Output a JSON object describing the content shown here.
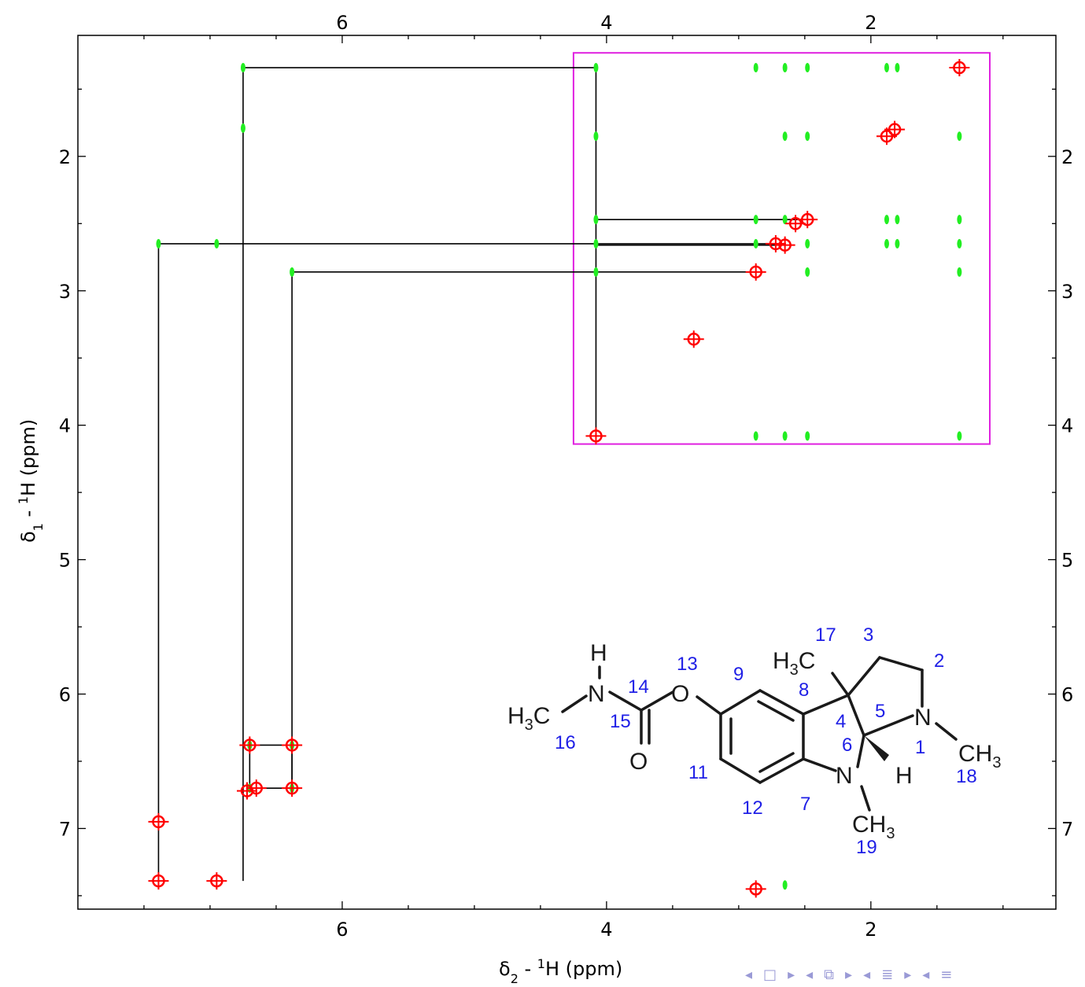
{
  "chart_data": {
    "type": "scatter",
    "x_unit": "ppm",
    "y_unit": "ppm",
    "xlim": [
      8.0,
      0.6
    ],
    "ylim": [
      1.1,
      7.6
    ],
    "x_ticks": [
      "6",
      "4",
      "2"
    ],
    "y_ticks": [
      "2",
      "3",
      "4",
      "5",
      "6",
      "7"
    ],
    "grid": false,
    "colors": {
      "positive": "#ff0000",
      "negative": "#22ee22",
      "assignment": "#000000",
      "zoom_box": "#e020e0"
    },
    "peaks_red": [
      [
        1.33,
        1.34
      ],
      [
        1.88,
        1.85
      ],
      [
        1.82,
        1.8
      ],
      [
        2.48,
        2.47
      ],
      [
        2.57,
        2.5
      ],
      [
        2.65,
        2.66
      ],
      [
        2.72,
        2.65
      ],
      [
        2.87,
        2.86
      ],
      [
        3.34,
        3.36
      ],
      [
        4.08,
        4.08
      ],
      [
        6.38,
        6.38
      ],
      [
        6.72,
        6.72
      ],
      [
        6.65,
        6.7
      ],
      [
        6.38,
        6.7
      ],
      [
        6.7,
        6.38
      ],
      [
        7.39,
        7.39
      ],
      [
        7.39,
        6.95
      ],
      [
        6.95,
        7.39
      ],
      [
        2.87,
        7.45
      ]
    ],
    "peaks_green": [
      [
        6.75,
        1.34
      ],
      [
        4.08,
        1.34
      ],
      [
        2.87,
        1.34
      ],
      [
        2.65,
        1.34
      ],
      [
        2.48,
        1.34
      ],
      [
        1.88,
        1.34
      ],
      [
        1.8,
        1.34
      ],
      [
        6.75,
        1.79
      ],
      [
        4.08,
        1.85
      ],
      [
        2.65,
        1.85
      ],
      [
        2.48,
        1.85
      ],
      [
        1.33,
        1.85
      ],
      [
        4.08,
        2.47
      ],
      [
        2.87,
        2.47
      ],
      [
        2.65,
        2.47
      ],
      [
        1.88,
        2.47
      ],
      [
        1.8,
        2.47
      ],
      [
        1.33,
        2.47
      ],
      [
        7.39,
        2.65
      ],
      [
        6.95,
        2.65
      ],
      [
        4.08,
        2.65
      ],
      [
        2.87,
        2.65
      ],
      [
        2.48,
        2.65
      ],
      [
        1.88,
        2.65
      ],
      [
        1.8,
        2.65
      ],
      [
        1.33,
        2.65
      ],
      [
        6.38,
        2.86
      ],
      [
        4.08,
        2.86
      ],
      [
        2.48,
        2.86
      ],
      [
        1.33,
        2.86
      ],
      [
        2.87,
        4.08
      ],
      [
        2.65,
        4.08
      ],
      [
        2.48,
        4.08
      ],
      [
        1.33,
        4.08
      ],
      [
        6.7,
        6.38
      ],
      [
        6.38,
        6.38
      ],
      [
        6.7,
        6.7
      ],
      [
        6.38,
        6.7
      ],
      [
        2.65,
        7.42
      ]
    ],
    "assignment_lines": [
      [
        [
          6.75,
          7.39
        ],
        [
          6.75,
          1.34
        ],
        [
          4.08,
          1.34
        ],
        [
          4.08,
          4.08
        ]
      ],
      [
        [
          7.39,
          7.39
        ],
        [
          7.39,
          2.65
        ],
        [
          2.72,
          2.65
        ]
      ],
      [
        [
          6.38,
          6.7
        ],
        [
          6.38,
          2.86
        ],
        [
          2.87,
          2.86
        ]
      ],
      [
        [
          4.08,
          2.47
        ],
        [
          2.48,
          2.47
        ]
      ],
      [
        [
          4.08,
          2.66
        ],
        [
          2.65,
          2.66
        ]
      ],
      [
        [
          6.7,
          6.38
        ],
        [
          6.38,
          6.38
        ],
        [
          6.38,
          6.7
        ],
        [
          6.7,
          6.7
        ],
        [
          6.7,
          6.38
        ]
      ]
    ],
    "zoom_box": {
      "x": [
        4.25,
        1.1
      ],
      "y": [
        1.23,
        4.14
      ]
    }
  },
  "labels": {
    "x_axis_prefix": "δ",
    "x_axis_sub": "2",
    "x_axis_mid": " - ",
    "x_axis_sup": "1",
    "x_axis_suffix": "H  (ppm)",
    "y_axis_prefix": "δ",
    "y_axis_sub": "1",
    "y_axis_mid": " - ",
    "y_axis_sup": "1",
    "y_axis_suffix": "H  (ppm)"
  },
  "molecule": {
    "atoms": {
      "h_top": "H",
      "n_left": "N",
      "h3c_left": "H",
      "h3c_left_sub": "3",
      "h3c_left_c": "C",
      "o_carbonyl": "O",
      "o_ether": "O",
      "h3c_top": "H",
      "h3c_top_sub": "3",
      "h3c_top_c": "C",
      "n_right": "N",
      "ch3_right_c": "CH",
      "ch3_right_sub": "3",
      "n_bottom": "N",
      "h_bottom": "H",
      "ch3_bottom_c": "CH",
      "ch3_bottom_sub": "3"
    },
    "numbers": [
      "17",
      "3",
      "2",
      "13",
      "9",
      "8",
      "14",
      "15",
      "16",
      "5",
      "4",
      "1",
      "6",
      "11",
      "7",
      "18",
      "12",
      "19"
    ]
  }
}
